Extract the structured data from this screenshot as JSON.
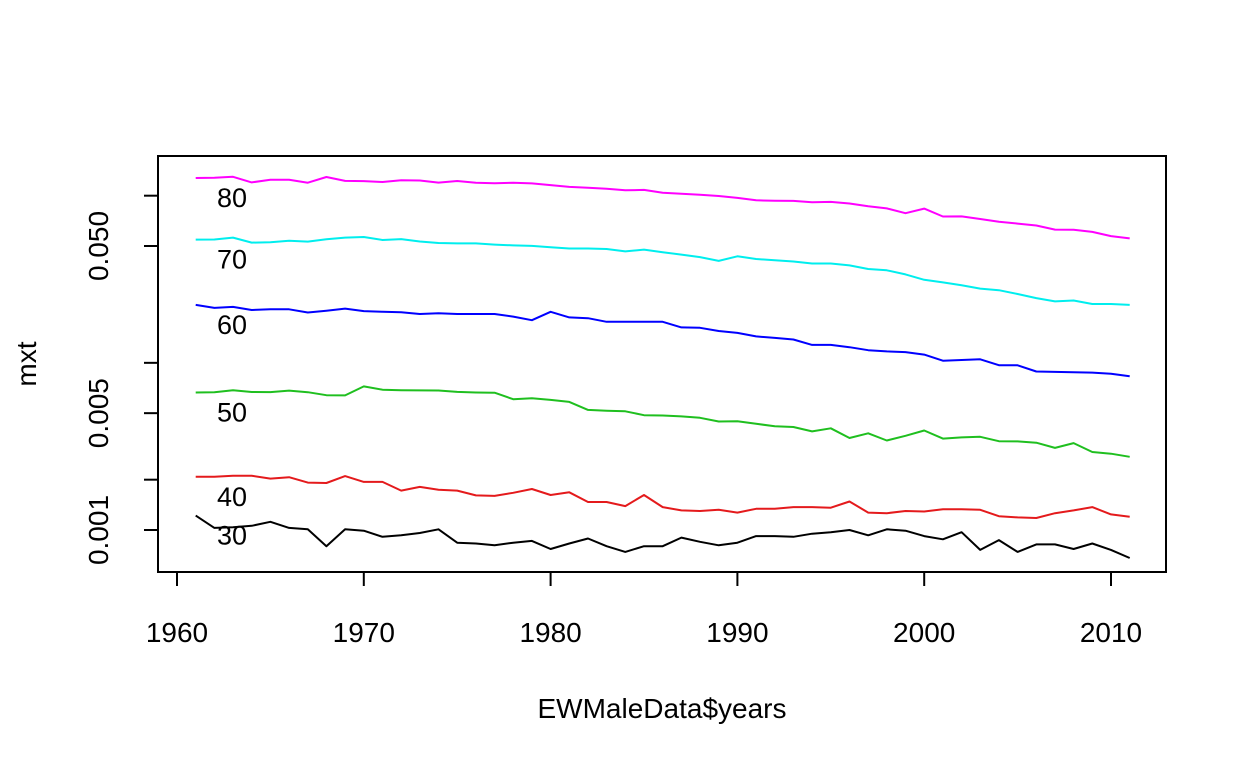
{
  "chart_data": {
    "type": "line",
    "title": "",
    "xlabel": "EWMaleData$years",
    "ylabel": "mxt",
    "y_scale": "log",
    "xlim": [
      1959,
      2013
    ],
    "ylim": [
      0.00058,
      0.14
    ],
    "x_ticks": [
      1960,
      1970,
      1980,
      1990,
      2000,
      2010
    ],
    "x_tick_labels": [
      "1960",
      "1970",
      "1980",
      "1990",
      "2000",
      "2010"
    ],
    "y_ticks": [
      0.001,
      0.002,
      0.005,
      0.01,
      0.05,
      0.1
    ],
    "y_tick_labels": [
      "0.001",
      "",
      "0.005",
      "",
      "0.050",
      ""
    ],
    "grid": false,
    "legend": "none",
    "x": [
      1961,
      1962,
      1963,
      1964,
      1965,
      1966,
      1967,
      1968,
      1969,
      1970,
      1971,
      1972,
      1973,
      1974,
      1975,
      1976,
      1977,
      1978,
      1979,
      1980,
      1981,
      1982,
      1983,
      1984,
      1985,
      1986,
      1987,
      1988,
      1989,
      1990,
      1991,
      1992,
      1993,
      1994,
      1995,
      1996,
      1997,
      1998,
      1999,
      2000,
      2001,
      2002,
      2003,
      2004,
      2005,
      2006,
      2007,
      2008,
      2009,
      2010,
      2011
    ],
    "series": [
      {
        "name": "30",
        "color": "#000000",
        "values": [
          0.00122,
          0.00103,
          0.00104,
          0.00106,
          0.00112,
          0.00103,
          0.00101,
          0.0008,
          0.00101,
          0.00099,
          0.00091,
          0.00093,
          0.00096,
          0.00101,
          0.00084,
          0.00083,
          0.00081,
          0.00084,
          0.00086,
          0.00077,
          0.00083,
          0.00089,
          0.0008,
          0.00074,
          0.0008,
          0.0008,
          0.0009,
          0.00085,
          0.00081,
          0.00084,
          0.00092,
          0.00092,
          0.00091,
          0.00095,
          0.00097,
          0.001,
          0.00093,
          0.00101,
          0.00099,
          0.00092,
          0.00088,
          0.00097,
          0.00076,
          0.00087,
          0.00074,
          0.00082,
          0.00082,
          0.00077,
          0.00083,
          0.00076,
          0.00068
        ]
      },
      {
        "name": "40",
        "color": "#e41a1c",
        "values": [
          0.00208,
          0.00208,
          0.00211,
          0.00211,
          0.00203,
          0.00207,
          0.00192,
          0.00191,
          0.0021,
          0.00194,
          0.00194,
          0.00172,
          0.00181,
          0.00174,
          0.00172,
          0.00161,
          0.0016,
          0.00167,
          0.00176,
          0.00162,
          0.00168,
          0.00147,
          0.00147,
          0.00139,
          0.00162,
          0.00137,
          0.00131,
          0.0013,
          0.00132,
          0.00127,
          0.00134,
          0.00134,
          0.00137,
          0.00137,
          0.00136,
          0.00148,
          0.00127,
          0.00126,
          0.0013,
          0.00129,
          0.00133,
          0.00133,
          0.00132,
          0.00121,
          0.00119,
          0.00118,
          0.00126,
          0.00131,
          0.00137,
          0.00124,
          0.0012
        ]
      },
      {
        "name": "50",
        "color": "#1fbf1f",
        "values": [
          0.00665,
          0.00667,
          0.00685,
          0.00669,
          0.00668,
          0.00682,
          0.00667,
          0.0064,
          0.00639,
          0.00723,
          0.00691,
          0.00686,
          0.00684,
          0.00683,
          0.0067,
          0.00665,
          0.00663,
          0.00606,
          0.00614,
          0.006,
          0.00584,
          0.00523,
          0.00517,
          0.00513,
          0.00486,
          0.00484,
          0.00478,
          0.00469,
          0.00446,
          0.00447,
          0.00432,
          0.00418,
          0.00413,
          0.00389,
          0.00406,
          0.00355,
          0.00379,
          0.00343,
          0.00366,
          0.00394,
          0.00352,
          0.00358,
          0.00361,
          0.0034,
          0.00339,
          0.00333,
          0.0031,
          0.00331,
          0.00293,
          0.00286,
          0.00274
        ]
      },
      {
        "name": "60",
        "color": "#0000ff",
        "values": [
          0.0222,
          0.0213,
          0.0216,
          0.0207,
          0.0209,
          0.0209,
          0.02,
          0.0205,
          0.0211,
          0.0204,
          0.0202,
          0.0201,
          0.0196,
          0.0198,
          0.0196,
          0.0196,
          0.0196,
          0.0189,
          0.018,
          0.0202,
          0.0187,
          0.0185,
          0.0176,
          0.0176,
          0.0176,
          0.0176,
          0.0163,
          0.0162,
          0.0155,
          0.0151,
          0.0144,
          0.0141,
          0.0138,
          0.0128,
          0.0128,
          0.0124,
          0.0119,
          0.0117,
          0.0116,
          0.0112,
          0.0103,
          0.0104,
          0.0105,
          0.00968,
          0.00967,
          0.00887,
          0.00883,
          0.00878,
          0.00874,
          0.00861,
          0.00832
        ]
      },
      {
        "name": "70",
        "color": "#00eeee",
        "values": [
          0.0546,
          0.0547,
          0.0561,
          0.0524,
          0.0526,
          0.0537,
          0.0531,
          0.0548,
          0.0561,
          0.0566,
          0.0543,
          0.055,
          0.0532,
          0.0521,
          0.0518,
          0.0518,
          0.051,
          0.0504,
          0.0501,
          0.0492,
          0.0483,
          0.0483,
          0.048,
          0.0464,
          0.0476,
          0.0459,
          0.0444,
          0.0429,
          0.0407,
          0.0434,
          0.0418,
          0.0411,
          0.0404,
          0.0393,
          0.0393,
          0.0383,
          0.0364,
          0.0358,
          0.0338,
          0.0314,
          0.0303,
          0.0291,
          0.0278,
          0.0272,
          0.0258,
          0.0244,
          0.0233,
          0.0236,
          0.0225,
          0.0225,
          0.0222
        ]
      },
      {
        "name": "80",
        "color": "#ff00ff",
        "values": [
          0.1275,
          0.1281,
          0.1297,
          0.1201,
          0.1246,
          0.1245,
          0.1195,
          0.1293,
          0.1225,
          0.1223,
          0.1208,
          0.1238,
          0.1233,
          0.1197,
          0.1224,
          0.1196,
          0.1188,
          0.1196,
          0.1184,
          0.1157,
          0.1129,
          0.1114,
          0.1101,
          0.1077,
          0.1083,
          0.104,
          0.1026,
          0.1013,
          0.0996,
          0.097,
          0.0938,
          0.0932,
          0.093,
          0.0914,
          0.0918,
          0.0898,
          0.0864,
          0.0839,
          0.0786,
          0.0837,
          0.0751,
          0.0752,
          0.0725,
          0.0699,
          0.0681,
          0.0663,
          0.0627,
          0.0626,
          0.0607,
          0.0573,
          0.0555
        ]
      }
    ],
    "annotations": [
      {
        "text": "30",
        "x": 1963
      },
      {
        "text": "40",
        "x": 1963
      },
      {
        "text": "50",
        "x": 1963
      },
      {
        "text": "60",
        "x": 1963
      },
      {
        "text": "70",
        "x": 1963
      },
      {
        "text": "80",
        "x": 1963
      }
    ]
  }
}
